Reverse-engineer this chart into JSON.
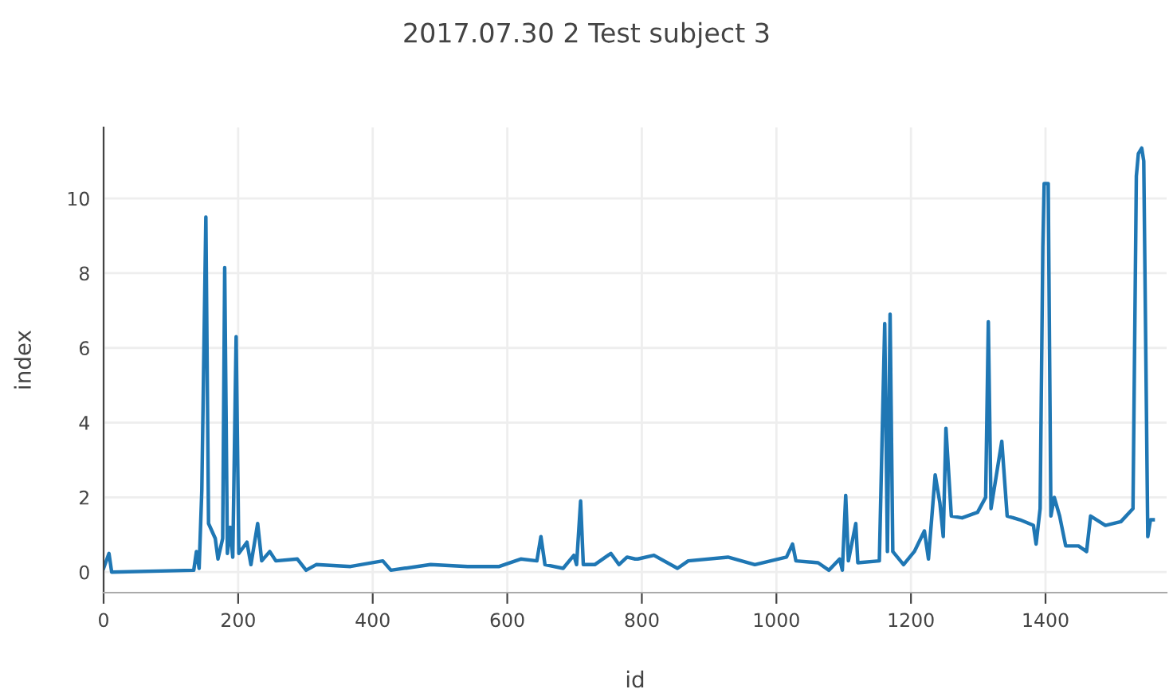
{
  "chart_data": {
    "type": "line",
    "title": "2017.07.30 2 Test subject 3",
    "xlabel": "id",
    "ylabel": "index",
    "x": [
      0,
      8,
      12,
      134,
      138,
      142,
      146,
      152,
      156,
      166,
      170,
      177,
      180,
      184,
      188,
      192,
      197,
      201,
      213,
      219,
      229,
      235,
      247,
      256,
      288,
      301,
      316,
      367,
      415,
      427,
      486,
      541,
      588,
      620,
      644,
      650,
      656,
      683,
      699,
      703,
      709,
      713,
      730,
      754,
      766,
      778,
      790,
      794,
      818,
      853,
      869,
      928,
      968,
      1015,
      1024,
      1029,
      1062,
      1078,
      1094,
      1098,
      1103,
      1107,
      1118,
      1121,
      1153,
      1161,
      1165,
      1169,
      1173,
      1189,
      1205,
      1220,
      1226,
      1236,
      1243,
      1248,
      1252,
      1260,
      1276,
      1299,
      1311,
      1315,
      1319,
      1335,
      1343,
      1362,
      1382,
      1386,
      1392,
      1396,
      1398,
      1404,
      1408,
      1413,
      1421,
      1430,
      1449,
      1461,
      1467,
      1489,
      1512,
      1530,
      1535,
      1538,
      1543,
      1546,
      1552,
      1556,
      1560
    ],
    "series": [
      {
        "color": "#1f77b4",
        "values": [
          0.1,
          0.5,
          0,
          0.05,
          0.55,
          0.1,
          2.2,
          9.5,
          1.3,
          0.9,
          0.35,
          0.9,
          8.15,
          0.5,
          1.2,
          0.4,
          6.3,
          0.5,
          0.8,
          0.2,
          1.3,
          0.3,
          0.55,
          0.3,
          0.35,
          0.05,
          0.2,
          0.15,
          0.3,
          0.05,
          0.2,
          0.15,
          0.15,
          0.35,
          0.3,
          0.95,
          0.2,
          0.1,
          0.45,
          0.2,
          1.9,
          0.2,
          0.2,
          0.5,
          0.2,
          0.4,
          0.35,
          0.35,
          0.45,
          0.1,
          0.3,
          0.4,
          0.2,
          0.4,
          0.75,
          0.3,
          0.25,
          0.05,
          0.35,
          0.05,
          2.05,
          0.3,
          1.3,
          0.25,
          0.3,
          6.65,
          0.55,
          6.9,
          0.55,
          0.2,
          0.55,
          1.1,
          0.35,
          2.6,
          1.85,
          0.95,
          3.85,
          1.5,
          1.45,
          1.6,
          2.0,
          6.7,
          1.7,
          3.5,
          1.5,
          1.4,
          1.25,
          0.75,
          1.7,
          8.7,
          10.4,
          10.4,
          1.5,
          2.0,
          1.5,
          0.7,
          0.7,
          0.55,
          1.5,
          1.25,
          1.35,
          1.7,
          10.6,
          11.2,
          11.35,
          11.0,
          0.95,
          1.4,
          1.4
        ]
      }
    ],
    "xlim": [
      0,
      1580
    ],
    "ylim": [
      -0.55,
      11.9
    ],
    "xticks": [
      0,
      200,
      400,
      600,
      800,
      1000,
      1200,
      1400
    ],
    "yticks": [
      0,
      2,
      4,
      6,
      8,
      10
    ],
    "grid": true
  }
}
